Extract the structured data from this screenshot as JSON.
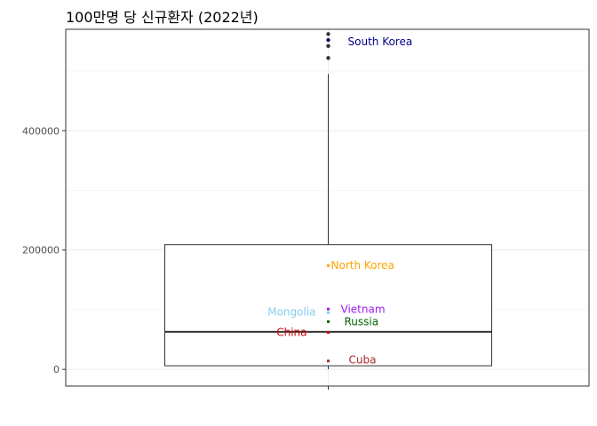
{
  "chart_data": {
    "type": "boxplot",
    "title": "100만명 당 신규환자 (2022년)",
    "xlabel": "",
    "ylabel": "",
    "ylim": [
      -28000,
      570000
    ],
    "y_ticks": [
      0,
      200000,
      400000
    ],
    "y_tick_labels": [
      "0",
      "200000",
      "400000"
    ],
    "grid": true,
    "box": {
      "q1": 6000,
      "median": 63000,
      "q3": 209000,
      "whisker_low": 0,
      "whisker_high": 495000
    },
    "outliers": [
      522000,
      542000,
      552000,
      562000
    ],
    "points": [
      {
        "label": "South Korea",
        "value": 552000,
        "color": "#00008B",
        "label_value": 549000
      },
      {
        "label": "North Korea",
        "value": 174000,
        "color": "#FFA500",
        "label_value": 174000
      },
      {
        "label": "Vietnam",
        "value": 101000,
        "color": "#A020F0",
        "label_value": 101000
      },
      {
        "label": "Mongolia",
        "value": 95000,
        "color": "#87CEEB",
        "label_value": 96000
      },
      {
        "label": "Russia",
        "value": 80000,
        "color": "#006400",
        "label_value": 80000
      },
      {
        "label": "China",
        "value": 62000,
        "color": "#CC0000",
        "label_value": 62000
      },
      {
        "label": "Cuba",
        "value": 14000,
        "color": "#A52A2A",
        "label_value": 16000
      }
    ]
  }
}
